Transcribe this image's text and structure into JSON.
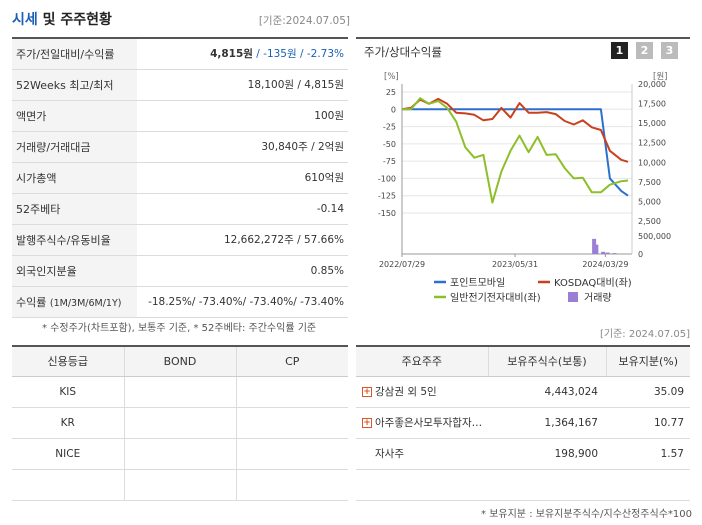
{
  "header": {
    "title_main": "시세",
    "title_rest": " 및 주주현황",
    "date": "[기준:2024.07.05]"
  },
  "quote": {
    "rows": [
      {
        "label": "주가/전일대비/수익률",
        "price": "4,815원",
        "change": " / -135원 / -2.73%"
      },
      {
        "label": "52Weeks 최고/최저",
        "value": "18,100원 / 4,815원"
      },
      {
        "label": "액면가",
        "value": "100원"
      },
      {
        "label": "거래량/거래대금",
        "value": "30,840주 / 2억원"
      },
      {
        "label": "시가총액",
        "value": "610억원"
      },
      {
        "label": "52주베타",
        "value": "-0.14"
      },
      {
        "label": "발행주식수/유동비율",
        "value": "12,662,272주 / 57.66%"
      },
      {
        "label": "외국인지분율",
        "value": "0.85%"
      },
      {
        "label": "수익률",
        "label_sub": "(1M/3M/6M/1Y)",
        "value": "-18.25%/ -73.40%/ -73.40%/ -73.40%"
      }
    ]
  },
  "notes": {
    "left": "* 수정주가(차트포함), 보통주 기준, * 52주베타: 주간수익률 기준",
    "right_date": "[기준: 2024.07.05]",
    "bottom": "* 보유지분 : 보유지분주식수/지수산정주식수*100"
  },
  "chart_panel": {
    "title": "주가/상대수익률",
    "pages": [
      "1",
      "2",
      "3"
    ],
    "left_unit": "[%]",
    "right_unit": "[원]"
  },
  "chart_data": {
    "type": "line",
    "x_ticks": [
      "2022/07/29",
      "2023/05/31",
      "2024/03/29"
    ],
    "y_left_ticks": [
      25,
      0,
      -25,
      -50,
      -75,
      -100,
      -125,
      -150
    ],
    "y_left_lim": [
      -150,
      25
    ],
    "y_right_ticks": [
      "20,000",
      "17,500",
      "15,000",
      "12,500",
      "10,000",
      "7,500",
      "5,000",
      "2,500"
    ],
    "y_right_lim": [
      2500,
      20000
    ],
    "volume_ticks": [
      "500,000",
      "0"
    ],
    "volume_lim": [
      0,
      500000
    ],
    "x_index": [
      0,
      4,
      8,
      12,
      16,
      20,
      24,
      28,
      32,
      36,
      40,
      44,
      48,
      52,
      56,
      60,
      64,
      68,
      72,
      76,
      80,
      84,
      88,
      92,
      97,
      100
    ],
    "series": [
      {
        "name": "포인트모바일",
        "color": "#2d6fcf",
        "axis": "left",
        "values": [
          0,
          0,
          0,
          0,
          0,
          0,
          0,
          0,
          0,
          0,
          0,
          0,
          0,
          0,
          0,
          0,
          0,
          0,
          0,
          0,
          0,
          0,
          0,
          -100,
          -118,
          -125
        ]
      },
      {
        "name": "KOSDAQ대비(좌)",
        "color": "#c9401d",
        "axis": "left",
        "values": [
          0,
          2,
          14,
          8,
          15,
          8,
          -5,
          -6,
          -8,
          -16,
          -14,
          2,
          -12,
          9,
          -5,
          -5,
          -4,
          -7,
          -17,
          -22,
          -16,
          -26,
          -30,
          -60,
          -73,
          -76
        ]
      },
      {
        "name": "일반전기전자대비(좌)",
        "color": "#8dbf2a",
        "axis": "left",
        "values": [
          0,
          0,
          16,
          8,
          12,
          2,
          -18,
          -55,
          -70,
          -66,
          -135,
          -90,
          -60,
          -38,
          -62,
          -40,
          -66,
          -65,
          -85,
          -100,
          -99,
          -120,
          -120,
          -109,
          -104,
          -103
        ]
      },
      {
        "name": "거래량",
        "color": "#9b7fd4",
        "axis": "volume",
        "type": "bar",
        "x": [
          85,
          86,
          89,
          91,
          94
        ],
        "values": [
          420000,
          260000,
          60000,
          40000,
          25000
        ]
      }
    ]
  },
  "credit": {
    "headers": [
      "신용등급",
      "BOND",
      "CP"
    ],
    "rows": [
      [
        "KIS",
        "",
        ""
      ],
      [
        "KR",
        "",
        ""
      ],
      [
        "NICE",
        "",
        ""
      ],
      [
        "",
        "",
        ""
      ]
    ]
  },
  "holders": {
    "headers": [
      "주요주주",
      "보유주식수(보통)",
      "보유지분(%)"
    ],
    "rows": [
      {
        "name": "강삼권 외 5인",
        "shares": "4,443,024",
        "pct": "35.09",
        "expand": true
      },
      {
        "name": "아주좋은사모투자합자…",
        "shares": "1,364,167",
        "pct": "10.77",
        "expand": true
      },
      {
        "name": "자사주",
        "shares": "198,900",
        "pct": "1.57",
        "expand": false
      },
      {
        "name": "",
        "shares": "",
        "pct": "",
        "expand": false
      }
    ]
  }
}
